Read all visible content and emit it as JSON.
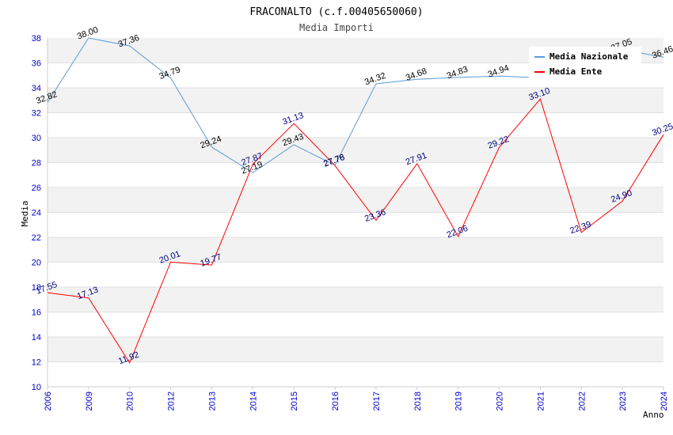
{
  "chart_data": {
    "type": "line",
    "title": "FRACONALTO (c.f.00405650060)",
    "subtitle": "Media Importi",
    "xlabel": "Anno",
    "ylabel": "Media",
    "ylim": [
      10,
      38
    ],
    "yticks": [
      10,
      12,
      14,
      16,
      18,
      20,
      22,
      24,
      26,
      28,
      30,
      32,
      34,
      36,
      38
    ],
    "grid": "horizontal-bands",
    "legend_position": "top-right",
    "categories": [
      "2006",
      "2009",
      "2010",
      "2012",
      "2013",
      "2014",
      "2015",
      "2016",
      "2017",
      "2018",
      "2019",
      "2020",
      "2021",
      "2022",
      "2023",
      "2024"
    ],
    "series": [
      {
        "name": "Media Nazionale",
        "color": "#5b9bd5",
        "values": [
          32.82,
          38.0,
          37.36,
          34.79,
          29.24,
          27.19,
          29.43,
          27.78,
          34.32,
          34.68,
          34.83,
          34.94,
          34.8,
          null,
          37.05,
          36.46
        ],
        "labels": [
          "32.82",
          "38.00",
          "37.36",
          "34.79",
          "29.24",
          "27.19",
          "29.43",
          "27.78",
          "34.32",
          "34.68",
          "34.83",
          "34.94",
          "",
          "",
          "37.05",
          "36.46"
        ]
      },
      {
        "name": "Media Ente",
        "color": "#ff0000",
        "values": [
          17.55,
          17.13,
          11.92,
          20.01,
          19.77,
          27.87,
          31.13,
          27.76,
          23.36,
          27.91,
          22.06,
          29.22,
          33.1,
          22.39,
          24.9,
          30.25
        ],
        "labels": [
          "17.55",
          "17.13",
          "11.92",
          "20.01",
          "19.77",
          "27.87",
          "31.13",
          "27.76",
          "23.36",
          "27.91",
          "22.06",
          "29.22",
          "33.10",
          "22.39",
          "24.90",
          "30.25"
        ]
      }
    ]
  }
}
